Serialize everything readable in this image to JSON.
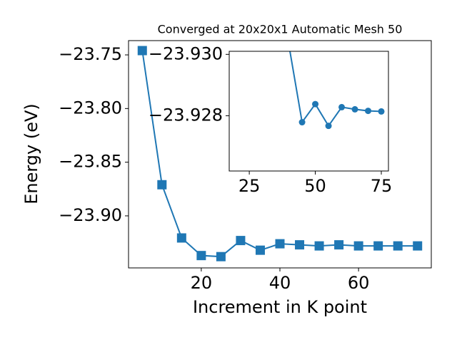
{
  "chart_data": [
    {
      "type": "line",
      "title": "Converged at 20x20x1 Automatic Mesh 50",
      "xlabel": "Increment in K point",
      "ylabel": "Energy (eV)",
      "x": [
        5,
        10,
        15,
        20,
        25,
        30,
        35,
        40,
        45,
        50,
        55,
        60,
        65,
        70,
        75
      ],
      "series": [
        {
          "name": "Energy",
          "color": "#1f77b4",
          "marker": "square",
          "values": [
            -23.746,
            -23.871,
            -23.9206,
            -23.937,
            -23.938,
            -23.923,
            -23.932,
            -23.926,
            -23.927,
            -23.928,
            -23.927,
            -23.928,
            -23.928,
            -23.928,
            -23.928
          ]
        }
      ],
      "xlim": [
        1.5,
        78.5
      ],
      "ylim": [
        -23.9485,
        -23.7367
      ],
      "xticks": [
        20,
        40,
        60
      ],
      "yticks": [
        {
          "value": -23.75,
          "label": "−23.75"
        },
        {
          "value": -23.8,
          "label": "−23.80"
        },
        {
          "value": -23.85,
          "label": "−23.85"
        },
        {
          "value": -23.9,
          "label": "−23.90"
        }
      ]
    },
    {
      "type": "line",
      "x": [
        40,
        45,
        50,
        55,
        60,
        65,
        70,
        75
      ],
      "series": [
        {
          "name": "Energy",
          "color": "#1f77b4",
          "marker": "circle",
          "values": [
            -23.9303,
            -23.92779,
            -23.92838,
            -23.92767,
            -23.92828,
            -23.92821,
            -23.92816,
            -23.92814
          ]
        }
      ],
      "xlim": [
        17.4,
        77.7
      ],
      "ylim": [
        -23.9262,
        -23.9301
      ],
      "xticks": [
        25,
        50,
        75
      ],
      "yticks": [
        {
          "value": -23.93,
          "label": "−23.930"
        },
        {
          "value": -23.928,
          "label": "−23.928"
        }
      ]
    }
  ]
}
